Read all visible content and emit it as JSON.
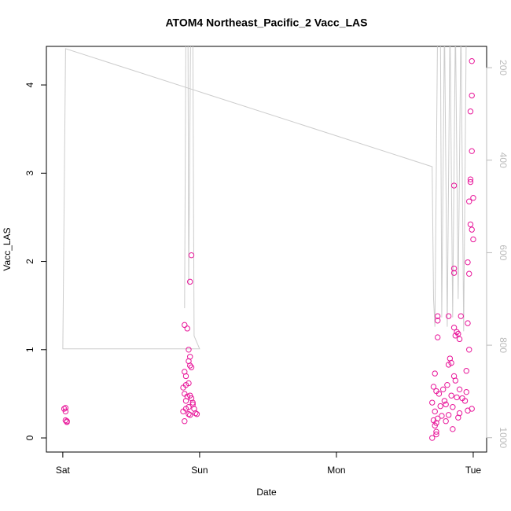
{
  "chart_data": {
    "type": "scatter",
    "title": "ATOM4 Northeast_Pacific_2 Vacc_LAS",
    "xlabel": "Date",
    "ylabel": "Vacc_LAS",
    "xlim": [
      -0.12,
      3.098
    ],
    "xticks": [
      {
        "value": 0,
        "label": "Sat"
      },
      {
        "value": 1,
        "label": "Sun"
      },
      {
        "value": 2,
        "label": "Mon"
      },
      {
        "value": 3,
        "label": "Tue"
      }
    ],
    "ylim": [
      -0.16,
      4.437
    ],
    "yticks": [
      0,
      1,
      2,
      3,
      4
    ],
    "y2lim": [
      1031,
      154
    ],
    "y2ticks": [
      200,
      400,
      600,
      800,
      1000
    ],
    "series": [
      {
        "type": "scatter",
        "color": "#e8179a",
        "x": [
          0.02,
          0.01,
          0.02,
          0.02,
          0.03,
          0.03,
          0.89,
          0.91,
          0.94,
          0.93,
          0.92,
          0.93,
          0.92,
          0.93,
          0.94,
          0.89,
          0.9,
          0.9,
          0.88,
          0.92,
          0.89,
          0.91,
          0.93,
          0.94,
          0.9,
          0.95,
          0.88,
          0.9,
          0.92,
          0.93,
          0.96,
          0.97,
          0.98,
          0.89,
          0.92,
          0.95,
          2.99,
          2.99,
          2.98,
          2.99,
          2.98,
          2.98,
          2.86,
          3.0,
          2.97,
          2.98,
          2.99,
          3.0,
          2.96,
          2.86,
          2.86,
          2.97,
          2.74,
          2.82,
          2.91,
          2.74,
          2.96,
          2.86,
          2.88,
          2.89,
          2.87,
          2.74,
          2.9,
          2.97,
          2.83,
          2.84,
          2.82,
          2.95,
          2.72,
          2.86,
          2.87,
          2.81,
          2.71,
          2.78,
          2.73,
          2.95,
          2.75,
          2.84,
          2.88,
          2.92,
          2.79,
          2.7,
          2.8,
          2.76,
          2.85,
          2.99,
          2.72,
          2.9,
          2.82,
          2.77,
          2.74,
          2.71,
          2.8,
          2.73,
          2.72,
          2.85,
          2.73,
          2.73,
          2.7,
          2.94,
          2.9,
          2.89,
          2.96
        ],
        "values": [
          0.34,
          0.33,
          0.3,
          0.2,
          0.19,
          0.18,
          1.28,
          1.24,
          2.07,
          1.77,
          1.0,
          0.92,
          0.87,
          0.82,
          0.8,
          0.75,
          0.7,
          0.6,
          0.57,
          0.62,
          0.5,
          0.47,
          0.48,
          0.45,
          0.42,
          0.4,
          0.3,
          0.33,
          0.27,
          0.26,
          0.33,
          0.28,
          0.27,
          0.19,
          0.35,
          0.38,
          4.27,
          3.88,
          3.7,
          3.25,
          2.93,
          2.9,
          2.86,
          2.72,
          2.68,
          2.42,
          2.36,
          2.25,
          1.99,
          1.92,
          1.87,
          1.86,
          1.38,
          1.38,
          1.38,
          1.33,
          1.3,
          1.25,
          1.2,
          1.18,
          1.16,
          1.14,
          1.12,
          1.0,
          0.9,
          0.85,
          0.83,
          0.76,
          0.73,
          0.7,
          0.65,
          0.6,
          0.58,
          0.55,
          0.53,
          0.52,
          0.5,
          0.48,
          0.46,
          0.45,
          0.42,
          0.4,
          0.38,
          0.36,
          0.35,
          0.33,
          0.3,
          0.28,
          0.26,
          0.25,
          0.22,
          0.2,
          0.19,
          0.17,
          0.14,
          0.1,
          0.07,
          0.04,
          0.0,
          0.42,
          0.55,
          0.23,
          0.31
        ]
      },
      {
        "type": "line",
        "axis": "y2",
        "color": "#cccccc",
        "x": [
          0.89,
          0.9,
          0.915,
          0.92,
          0.935,
          0.95,
          0.96,
          1.0,
          0.0,
          0.02,
          2.7,
          2.71,
          2.72,
          2.74,
          2.76,
          2.77,
          2.79,
          2.81,
          2.83,
          2.85,
          2.87,
          2.89,
          2.91,
          2.93,
          2.95,
          2.97
        ],
        "values": [
          720,
          100,
          100,
          670,
          100,
          100,
          780,
          808,
          808,
          159,
          414,
          700,
          760,
          100,
          100,
          740,
          100,
          760,
          100,
          740,
          100,
          700,
          100,
          770,
          100,
          100
        ]
      }
    ]
  }
}
